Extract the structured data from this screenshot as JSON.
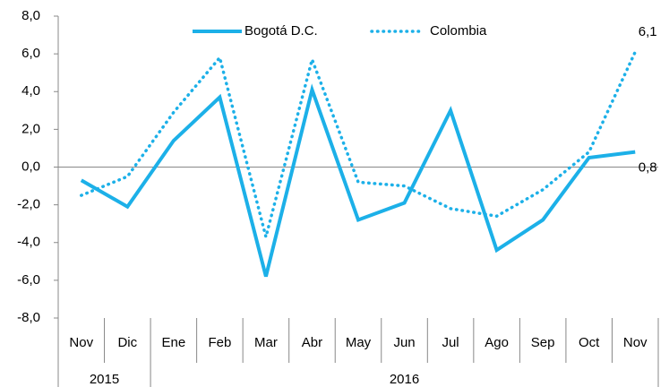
{
  "chart_data": {
    "type": "line",
    "categories": [
      "Nov",
      "Dic",
      "Ene",
      "Feb",
      "Mar",
      "Abr",
      "May",
      "Jun",
      "Jul",
      "Ago",
      "Sep",
      "Oct",
      "Nov"
    ],
    "x_groups": [
      {
        "label": "2015",
        "span": 2
      },
      {
        "label": "2016",
        "span": 11
      }
    ],
    "series": [
      {
        "name": "Bogotá D.C.",
        "color": "#1cb0e8",
        "style": "solid",
        "values": [
          -0.7,
          -2.1,
          1.4,
          3.7,
          -5.8,
          4.1,
          -2.8,
          -1.9,
          3.0,
          -4.4,
          -2.8,
          0.5,
          0.8
        ],
        "value_labels": [
          null,
          null,
          null,
          null,
          null,
          null,
          null,
          null,
          null,
          null,
          null,
          null,
          "0,8"
        ]
      },
      {
        "name": "Colombia",
        "color": "#1cb0e8",
        "style": "dotted",
        "values": [
          -1.5,
          -0.5,
          2.9,
          5.8,
          -3.7,
          5.7,
          -0.8,
          -1.0,
          -2.2,
          -2.6,
          -1.2,
          0.8,
          6.1
        ],
        "value_labels": [
          null,
          null,
          null,
          null,
          null,
          null,
          null,
          null,
          null,
          null,
          null,
          null,
          "6,1"
        ]
      }
    ],
    "ylim": [
      -8,
      8
    ],
    "yticks": [
      {
        "value": -8,
        "label": "-8,0"
      },
      {
        "value": -6,
        "label": "-6,0"
      },
      {
        "value": -4,
        "label": "-4,0"
      },
      {
        "value": -2,
        "label": "-2,0"
      },
      {
        "value": 0,
        "label": "0,0"
      },
      {
        "value": 2,
        "label": "2,0"
      },
      {
        "value": 4,
        "label": "4,0"
      },
      {
        "value": 6,
        "label": "6,0"
      },
      {
        "value": 8,
        "label": "8,0"
      }
    ],
    "grid": false,
    "legend": "top"
  }
}
